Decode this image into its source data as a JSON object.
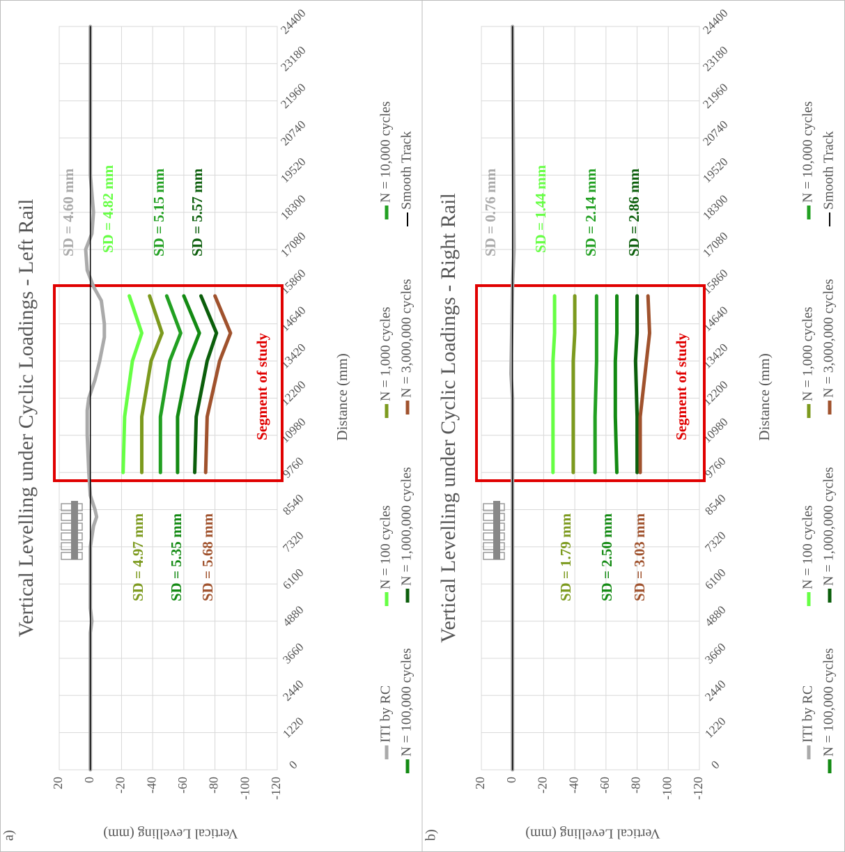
{
  "chart_data": [
    {
      "type": "line",
      "panel_label": "a)",
      "title": "Vertical Levelling under Cyclic Loadings - Left Rail",
      "x_label": "Distance (mm)",
      "y_label": "Vertical Levelling (mm)",
      "xlim": [
        0,
        24400
      ],
      "xticks": [
        0,
        1220,
        2440,
        3660,
        4880,
        6100,
        7320,
        8540,
        9760,
        10980,
        12200,
        13420,
        14640,
        15860,
        17080,
        18300,
        19520,
        20740,
        21960,
        23180,
        24400
      ],
      "ylim": [
        -120,
        20
      ],
      "yticks": [
        20,
        0,
        -20,
        -40,
        -60,
        -80,
        -100,
        -120
      ],
      "grid": true,
      "series": [
        {
          "name": "ITI by RC",
          "color": "#aaaaaa",
          "x": [
            0,
            2440,
            4500,
            4880,
            5300,
            7320,
            8000,
            8300,
            8540,
            9000,
            9760,
            10980,
            11800,
            12200,
            12800,
            13420,
            14200,
            14640,
            15400,
            15860,
            16400,
            17080,
            17600,
            18300,
            19520,
            24400
          ],
          "values": [
            0,
            0,
            0,
            -1,
            0,
            0,
            -2,
            -4,
            -3,
            0,
            1,
            2,
            2,
            1,
            -3,
            -6,
            -9,
            -9,
            -7,
            -2,
            2,
            3,
            -1,
            -2,
            0,
            0
          ]
        },
        {
          "name": "N = 100 cycles",
          "color": "#66ff44",
          "x": [
            9760,
            11590,
            13420,
            14335,
            15555
          ],
          "values": [
            -21,
            -22,
            -27,
            -33,
            -25
          ]
        },
        {
          "name": "N = 1,000 cycles",
          "color": "#7c9a1e",
          "x": [
            9760,
            11590,
            13420,
            14335,
            15555
          ],
          "values": [
            -33,
            -33,
            -39,
            -46,
            -38
          ]
        },
        {
          "name": "N = 10,000 cycles",
          "color": "#22a022",
          "x": [
            9760,
            11590,
            13420,
            14335,
            15555
          ],
          "values": [
            -45,
            -45,
            -51,
            -58,
            -49
          ]
        },
        {
          "name": "N = 100,000 cycles",
          "color": "#138a13",
          "x": [
            9760,
            11590,
            13420,
            14335,
            15555
          ],
          "values": [
            -56,
            -56,
            -63,
            -70,
            -60
          ]
        },
        {
          "name": "N = 1,000,000 cycles",
          "color": "#0b5e0b",
          "x": [
            9760,
            11590,
            13420,
            14335,
            15555
          ],
          "values": [
            -67,
            -68,
            -75,
            -81,
            -71
          ]
        },
        {
          "name": "N = 3,000,000 cycles",
          "color": "#a0522d",
          "x": [
            9760,
            11590,
            13420,
            14335,
            15555
          ],
          "values": [
            -74,
            -75,
            -83,
            -90,
            -80
          ]
        },
        {
          "name": "Smooth Track",
          "color": "#000000",
          "x": [
            0,
            24400
          ],
          "values": [
            0,
            0
          ]
        }
      ],
      "annotations": [
        {
          "text": "SD = 4.60 mm",
          "color": "#aaaaaa"
        },
        {
          "text": "SD = 4.82 mm",
          "color": "#66ff44"
        },
        {
          "text": "SD = 5.15 mm",
          "color": "#22a022"
        },
        {
          "text": "SD = 5.57 mm",
          "color": "#0b5e0b"
        },
        {
          "text": "SD = 4.97 mm",
          "color": "#7c9a1e"
        },
        {
          "text": "SD = 5.35 mm",
          "color": "#138a13"
        },
        {
          "text": "SD = 5.68 mm",
          "color": "#a0522d"
        },
        {
          "text": "Segment of study",
          "color": "#e00000"
        }
      ]
    },
    {
      "type": "line",
      "panel_label": "b)",
      "title": "Vertical Levelling under Cyclic Loadings - Right Rail",
      "x_label": "Distance (mm)",
      "y_label": "Vertical Levelling (mm)",
      "xlim": [
        0,
        24400
      ],
      "xticks": [
        0,
        1220,
        2440,
        3660,
        4880,
        6100,
        7320,
        8540,
        9760,
        10980,
        12200,
        13420,
        14640,
        15860,
        17080,
        18300,
        19520,
        20740,
        21960,
        23180,
        24400
      ],
      "ylim": [
        -120,
        20
      ],
      "yticks": [
        20,
        0,
        -20,
        -40,
        -60,
        -80,
        -100,
        -120
      ],
      "grid": true,
      "series": [
        {
          "name": "ITI by RC",
          "color": "#aaaaaa",
          "x": [
            0,
            12200,
            13000,
            15860,
            17080,
            24400
          ],
          "values": [
            0,
            0,
            1,
            0,
            -1,
            0
          ]
        },
        {
          "name": "N = 100 cycles",
          "color": "#66ff44",
          "x": [
            9760,
            11590,
            13420,
            14335,
            15555
          ],
          "values": [
            -26,
            -26,
            -26,
            -27,
            -27
          ]
        },
        {
          "name": "N = 1,000 cycles",
          "color": "#7c9a1e",
          "x": [
            9760,
            11590,
            13420,
            14335,
            15555
          ],
          "values": [
            -39,
            -39,
            -39,
            -40,
            -40
          ]
        },
        {
          "name": "N = 10,000 cycles",
          "color": "#22a022",
          "x": [
            9760,
            11590,
            13420,
            14335,
            15555
          ],
          "values": [
            -53,
            -53,
            -54,
            -54,
            -54
          ]
        },
        {
          "name": "N = 100,000 cycles",
          "color": "#138a13",
          "x": [
            9760,
            11590,
            13420,
            14335,
            15555
          ],
          "values": [
            -67,
            -66,
            -66,
            -67,
            -67
          ]
        },
        {
          "name": "N = 1,000,000 cycles",
          "color": "#0b5e0b",
          "x": [
            9760,
            11590,
            13420,
            14335,
            15555
          ],
          "values": [
            -80,
            -80,
            -79,
            -80,
            -80
          ]
        },
        {
          "name": "N = 3,000,000 cycles",
          "color": "#a0522d",
          "x": [
            9760,
            11590,
            13420,
            14335,
            15555
          ],
          "values": [
            -82,
            -82,
            -86,
            -88,
            -87
          ]
        },
        {
          "name": "Smooth Track",
          "color": "#000000",
          "x": [
            0,
            24400
          ],
          "values": [
            0,
            0
          ]
        }
      ],
      "annotations": [
        {
          "text": "SD = 0.76 mm",
          "color": "#aaaaaa"
        },
        {
          "text": "SD = 1.44 mm",
          "color": "#66ff44"
        },
        {
          "text": "SD = 2.14 mm",
          "color": "#22a022"
        },
        {
          "text": "SD = 2.86 mm",
          "color": "#0b5e0b"
        },
        {
          "text": "SD = 1.79 mm",
          "color": "#7c9a1e"
        },
        {
          "text": "SD = 2.50 mm",
          "color": "#138a13"
        },
        {
          "text": "SD = 3.03 mm",
          "color": "#a0522d"
        },
        {
          "text": "Segment of study",
          "color": "#e00000"
        }
      ]
    }
  ]
}
